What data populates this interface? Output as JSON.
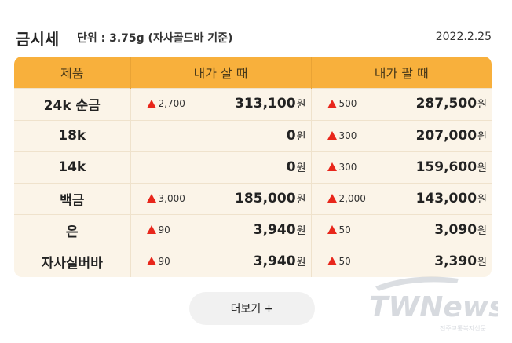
{
  "header": {
    "title": "금시세",
    "unit": "단위 : 3.75g (자사골드바 기준)",
    "date": "2022.2.25"
  },
  "table": {
    "columns": [
      "제품",
      "내가 살 때",
      "내가 팔 때"
    ],
    "currency": "원",
    "rows": [
      {
        "product": "24k 순금",
        "buy_change": "2,700",
        "buy_price": "313,100",
        "sell_change": "500",
        "sell_price": "287,500"
      },
      {
        "product": "18k",
        "buy_change": "",
        "buy_price": "0",
        "sell_change": "300",
        "sell_price": "207,000"
      },
      {
        "product": "14k",
        "buy_change": "",
        "buy_price": "0",
        "sell_change": "300",
        "sell_price": "159,600"
      },
      {
        "product": "백금",
        "buy_change": "3,000",
        "buy_price": "185,000",
        "sell_change": "2,000",
        "sell_price": "143,000"
      },
      {
        "product": "은",
        "buy_change": "90",
        "buy_price": "3,940",
        "sell_change": "50",
        "sell_price": "3,090"
      },
      {
        "product": "자사실버바",
        "buy_change": "90",
        "buy_price": "3,940",
        "sell_change": "50",
        "sell_price": "3,390"
      }
    ]
  },
  "more_button": {
    "label": "더보기 +"
  },
  "watermark": {
    "brand": "TWNews",
    "subtitle": "전주교통복지신문"
  },
  "colors": {
    "header_bg": "#f8b03c",
    "row_bg": "#fbf4e8",
    "up_arrow": "#e8261b"
  }
}
